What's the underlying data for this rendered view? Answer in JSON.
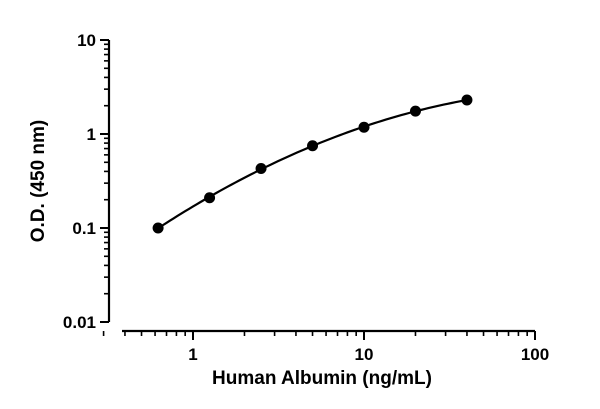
{
  "chart_data": {
    "type": "scatter",
    "title": "",
    "xlabel": "Human Albumin (ng/mL)",
    "ylabel": "O.D. (450 nm)",
    "xscale": "log",
    "yscale": "log",
    "xlim": [
      0.3,
      100
    ],
    "ylim": [
      0.01,
      10
    ],
    "x_ticks": [
      1,
      10,
      100
    ],
    "x_tick_labels": [
      "1",
      "10",
      "100"
    ],
    "y_ticks": [
      0.01,
      0.1,
      1,
      10
    ],
    "y_tick_labels": [
      "0.01",
      "0.1",
      "1",
      "10"
    ],
    "grid": false,
    "legend": "none",
    "fit_curve": true,
    "series": [
      {
        "x": [
          0.625,
          1.25,
          2.5,
          5,
          10,
          20,
          40
        ],
        "y": [
          0.1,
          0.21,
          0.43,
          0.75,
          1.18,
          1.75,
          2.3
        ]
      }
    ],
    "colors": {
      "line": "#000000",
      "marker": "#000000"
    }
  }
}
